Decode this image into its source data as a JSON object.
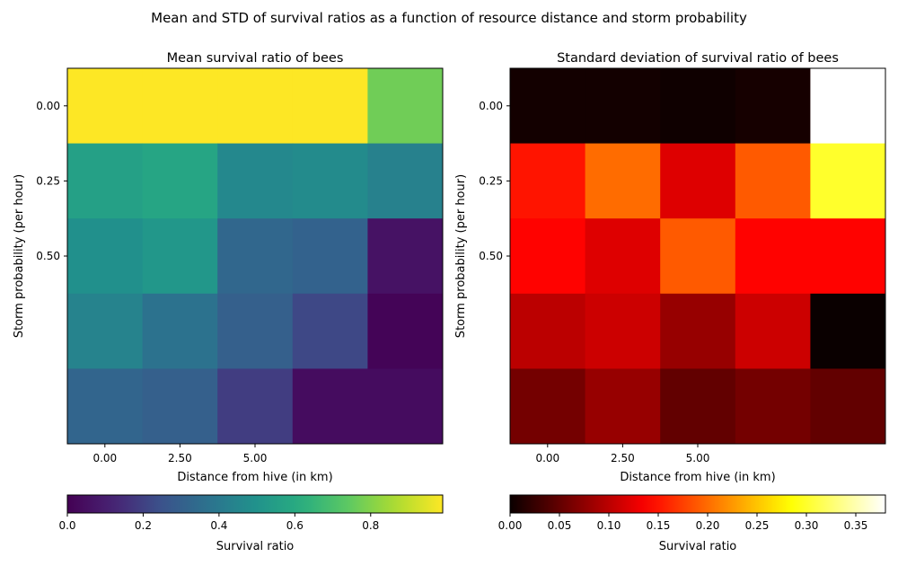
{
  "figure": {
    "suptitle": "Mean and STD of survival ratios as a function of resource distance and storm probability"
  },
  "chart_data": [
    {
      "type": "heatmap",
      "title": "Mean survival ratio of bees",
      "xlabel": "Distance from hive (in km)",
      "ylabel": "Storm probability (per hour)",
      "xticklabels": [
        "0.00",
        "2.50",
        "5.00"
      ],
      "yticklabels": [
        "0.00",
        "0.25",
        "0.50"
      ],
      "colormap": "viridis",
      "colorbar": {
        "label": "Survival ratio",
        "range": [
          0.0,
          0.99
        ],
        "ticks": [
          0.0,
          0.2,
          0.4,
          0.6,
          0.8
        ],
        "ticklabels": [
          "0.0",
          "0.2",
          "0.4",
          "0.6",
          "0.8"
        ],
        "orientation": "horizontal"
      },
      "grid": false,
      "values": [
        [
          0.99,
          0.99,
          0.99,
          0.99,
          0.77
        ],
        [
          0.56,
          0.58,
          0.46,
          0.47,
          0.43
        ],
        [
          0.49,
          0.52,
          0.33,
          0.31,
          0.06
        ],
        [
          0.44,
          0.37,
          0.3,
          0.22,
          0.01
        ],
        [
          0.32,
          0.3,
          0.19,
          0.04,
          0.04
        ]
      ]
    },
    {
      "type": "heatmap",
      "title": "Standard deviation of survival ratio of bees",
      "xlabel": "Distance from hive (in km)",
      "ylabel": "Storm probability (per hour)",
      "xticklabels": [
        "0.00",
        "2.50",
        "5.00"
      ],
      "yticklabels": [
        "0.00",
        "0.25",
        "0.50"
      ],
      "colormap": "hot",
      "colorbar": {
        "label": "Survival ratio",
        "range": [
          0.0,
          0.38
        ],
        "ticks": [
          0.0,
          0.05,
          0.1,
          0.15,
          0.2,
          0.25,
          0.3,
          0.35
        ],
        "ticklabels": [
          "0.00",
          "0.05",
          "0.10",
          "0.15",
          "0.20",
          "0.25",
          "0.30",
          "0.35"
        ],
        "orientation": "horizontal"
      },
      "grid": false,
      "values": [
        [
          0.005,
          0.005,
          0.003,
          0.007,
          0.38
        ],
        [
          0.15,
          0.2,
          0.12,
          0.19,
          0.3
        ],
        [
          0.14,
          0.12,
          0.19,
          0.14,
          0.14
        ],
        [
          0.1,
          0.11,
          0.08,
          0.11,
          0.0
        ],
        [
          0.06,
          0.08,
          0.05,
          0.06,
          0.05
        ]
      ]
    }
  ]
}
